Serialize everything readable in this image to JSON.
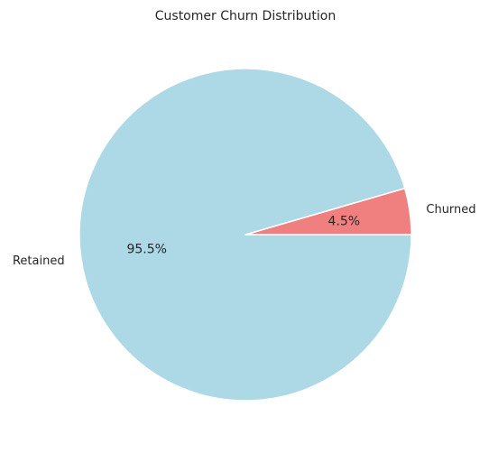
{
  "chart_data": {
    "type": "pie",
    "title": "Customer Churn Distribution",
    "slices": [
      {
        "label": "Churned",
        "value": 4.5,
        "pct_label": "4.5%",
        "color": "#f08080"
      },
      {
        "label": "Retained",
        "value": 95.5,
        "pct_label": "95.5%",
        "color": "#add8e6"
      }
    ],
    "start_angle_deg": 0,
    "direction": "counterclockwise",
    "legend": "none"
  }
}
